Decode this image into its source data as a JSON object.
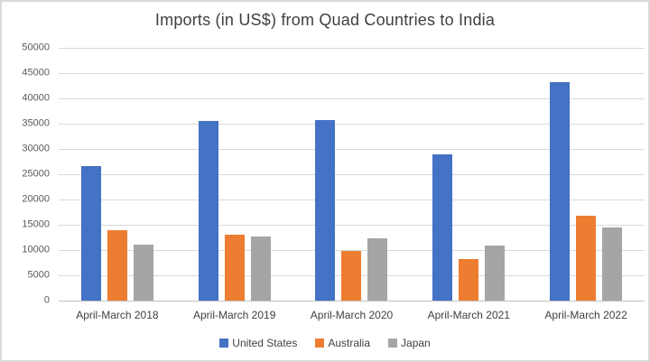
{
  "chart_data": {
    "type": "bar",
    "title": "Imports (in US$) from Quad Countries to India",
    "categories": [
      "April-March 2018",
      "April-March 2019",
      "April-March 2020",
      "April-March 2021",
      "April-March 2022"
    ],
    "series": [
      {
        "name": "United States",
        "color": "#4472C4",
        "values": [
          26600,
          35500,
          35800,
          28900,
          43300
        ]
      },
      {
        "name": "Australia",
        "color": "#ED7D31",
        "values": [
          14000,
          13100,
          9800,
          8200,
          16800
        ]
      },
      {
        "name": "Japan",
        "color": "#A5A5A5",
        "values": [
          11000,
          12700,
          12400,
          10900,
          14400
        ]
      }
    ],
    "xlabel": "",
    "ylabel": "",
    "ylim": [
      0,
      50000
    ],
    "y_ticks": [
      0,
      5000,
      10000,
      15000,
      20000,
      25000,
      30000,
      35000,
      40000,
      45000,
      50000
    ],
    "grid": "horizontal",
    "legend_position": "bottom",
    "colors": {
      "gridline": "#d9d9d9",
      "axis_line": "#c2c2c2",
      "tick_label": "#595959",
      "category_label": "#404040",
      "title": "#3f3f3f"
    }
  }
}
